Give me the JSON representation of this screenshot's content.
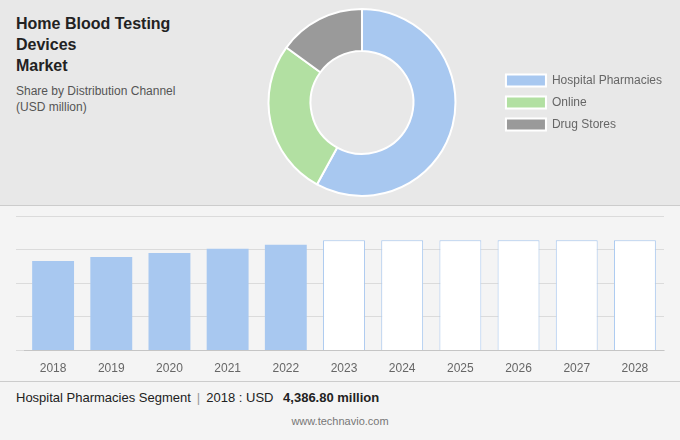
{
  "chart_data": [
    {
      "type": "donut",
      "title": "Home Blood Testing Devices\nMarket",
      "subtitle": "Share by Distribution Channel\n(USD million)",
      "categories": [
        "Hospital Pharmacies",
        "Online",
        "Drug Stores"
      ],
      "values": [
        58,
        27,
        15
      ],
      "colors": [
        "#a8c8f0",
        "#b2e0a2",
        "#9a9a9a"
      ],
      "legend": "right"
    },
    {
      "type": "bar",
      "categories": [
        "2018",
        "2019",
        "2020",
        "2021",
        "2022",
        "2023",
        "2024",
        "2025",
        "2026",
        "2027",
        "2028"
      ],
      "values": [
        4386.8,
        4580,
        4780,
        4980,
        5180,
        5400,
        5400,
        5400,
        5400,
        5400,
        5400
      ],
      "colors": [
        "#a8c8f0",
        "#a8c8f0",
        "#a8c8f0",
        "#a8c8f0",
        "#a8c8f0",
        "#ffffff",
        "#ffffff",
        "#ffffff",
        "#ffffff",
        "#ffffff",
        "#ffffff"
      ],
      "ylim": [
        0,
        6588
      ],
      "yticks": [
        0,
        1647,
        3294,
        4941,
        6588
      ],
      "grid": true,
      "tick_labels": "x",
      "annotations": [
        "Hospital Pharmacies Segment",
        "|",
        "2018 : USD ",
        "4,386.80 million",
        "www.technavio.com"
      ]
    }
  ]
}
